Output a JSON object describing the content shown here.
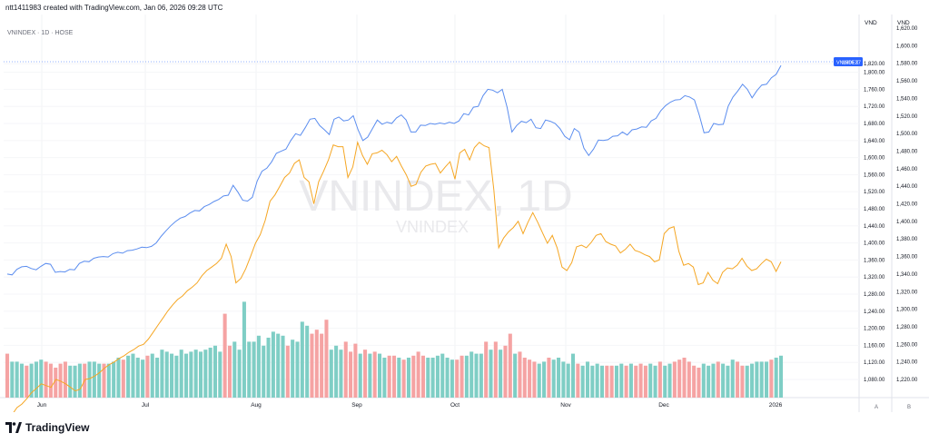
{
  "header_text": "ntt1411983 created with TradingView.com, Jan 06, 2026 09:28 UTC",
  "symbol_label": "VNINDEX · 1D · HOSE",
  "watermark_big": "VNINDEX, 1D",
  "watermark_small": "VNINDEX",
  "footer_brand": "TradingView",
  "colors": {
    "main_line": "#5b8def",
    "compare_line": "#f5a623",
    "vol_up": "#7fcec5",
    "vol_down": "#f5a3a3",
    "price_tag": "#2962ff"
  },
  "chart_data": {
    "type": "line",
    "x_labels": [
      "Jun",
      "Jul",
      "Aug",
      "Sep",
      "Oct",
      "Nov",
      "Dec",
      "2026"
    ],
    "right_axis_1": {
      "unit": "VND",
      "ticks": [
        1820,
        1800,
        1760,
        1720,
        1680,
        1640,
        1600,
        1560,
        1520,
        1480,
        1440,
        1400,
        1360,
        1320,
        1280,
        1240,
        1200,
        1160,
        1120,
        1080
      ],
      "tick_labels": [
        "1,820.00",
        "1,800.00",
        "1,760.00",
        "1,720.00",
        "1,680.00",
        "1,640.00",
        "1,600.00",
        "1,560.00",
        "1,520.00",
        "1,480.00",
        "1,440.00",
        "1,400.00",
        "1,360.00",
        "1,320.00",
        "1,280.00",
        "1,240.00",
        "1,200.00",
        "1,160.00",
        "1,120.00",
        "1,080.00"
      ]
    },
    "right_axis_2": {
      "unit": "VND",
      "ticks": [
        1620,
        1600,
        1580,
        1560,
        1540,
        1520,
        1500,
        1480,
        1460,
        1440,
        1420,
        1400,
        1380,
        1360,
        1340,
        1320,
        1300,
        1280,
        1260,
        1240,
        1220
      ],
      "tick_labels": [
        "1,620.00",
        "1,600.00",
        "1,580.00",
        "1,560.00",
        "1,540.00",
        "1,520.00",
        "1,500.00",
        "1,480.00",
        "1,460.00",
        "1,440.00",
        "1,420.00",
        "1,400.00",
        "1,380.00",
        "1,360.00",
        "1,340.00",
        "1,320.00",
        "1,300.00",
        "1,280.00",
        "1,260.00",
        "1,240.00",
        "1,220.00"
      ]
    },
    "price_tag": {
      "symbol": "VNINDEX",
      "value": "1,816.27"
    },
    "axis_buttons": [
      "A",
      "B"
    ],
    "series": [
      {
        "name": "VNINDEX",
        "axis": 1,
        "values": [
          1327,
          1325,
          1338,
          1344,
          1345,
          1340,
          1337,
          1345,
          1352,
          1350,
          1331,
          1333,
          1332,
          1338,
          1337,
          1352,
          1357,
          1356,
          1364,
          1367,
          1368,
          1367,
          1375,
          1378,
          1376,
          1382,
          1383,
          1386,
          1390,
          1389,
          1392,
          1400,
          1415,
          1428,
          1440,
          1450,
          1458,
          1462,
          1470,
          1476,
          1475,
          1485,
          1490,
          1497,
          1502,
          1510,
          1512,
          1535,
          1519,
          1500,
          1498,
          1507,
          1545,
          1568,
          1575,
          1590,
          1610,
          1615,
          1620,
          1640,
          1656,
          1652,
          1670,
          1690,
          1692,
          1675,
          1665,
          1654,
          1690,
          1695,
          1686,
          1688,
          1698,
          1665,
          1640,
          1648,
          1668,
          1688,
          1678,
          1683,
          1680,
          1693,
          1700,
          1688,
          1660,
          1660,
          1676,
          1675,
          1680,
          1678,
          1681,
          1679,
          1683,
          1680,
          1686,
          1703,
          1700,
          1718,
          1720,
          1745,
          1760,
          1758,
          1752,
          1760,
          1718,
          1660,
          1675,
          1685,
          1682,
          1690,
          1670,
          1668,
          1688,
          1685,
          1680,
          1668,
          1650,
          1642,
          1668,
          1660,
          1622,
          1605,
          1620,
          1641,
          1640,
          1642,
          1650,
          1651,
          1660,
          1653,
          1665,
          1667,
          1672,
          1671,
          1686,
          1692,
          1710,
          1722,
          1730,
          1735,
          1736,
          1745,
          1742,
          1735,
          1700,
          1658,
          1660,
          1680,
          1677,
          1678,
          1720,
          1742,
          1756,
          1772,
          1760,
          1740,
          1757,
          1770,
          1772,
          1787,
          1795,
          1816
        ]
      },
      {
        "name": "Compare",
        "axis": 2,
        "values": [
          1175,
          1180,
          1188,
          1192,
          1198,
          1205,
          1210,
          1215,
          1213,
          1211,
          1220,
          1218,
          1215,
          1211,
          1207,
          1209,
          1220,
          1221,
          1224,
          1228,
          1233,
          1237,
          1240,
          1244,
          1247,
          1251,
          1254,
          1258,
          1260,
          1266,
          1274,
          1282,
          1290,
          1298,
          1305,
          1311,
          1315,
          1321,
          1325,
          1330,
          1338,
          1344,
          1348,
          1352,
          1358,
          1374,
          1360,
          1330,
          1335,
          1346,
          1360,
          1375,
          1385,
          1401,
          1423,
          1430,
          1440,
          1450,
          1455,
          1466,
          1470,
          1450,
          1445,
          1420,
          1445,
          1457,
          1470,
          1487,
          1485,
          1485,
          1450,
          1462,
          1490,
          1475,
          1465,
          1477,
          1478,
          1481,
          1476,
          1468,
          1474,
          1463,
          1453,
          1440,
          1442,
          1456,
          1463,
          1465,
          1466,
          1455,
          1462,
          1468,
          1448,
          1478,
          1482,
          1470,
          1484,
          1490,
          1486,
          1484,
          1436,
          1370,
          1381,
          1388,
          1393,
          1400,
          1386,
          1399,
          1410,
          1399,
          1387,
          1375,
          1384,
          1370,
          1348,
          1344,
          1353,
          1371,
          1373,
          1370,
          1376,
          1384,
          1386,
          1377,
          1374,
          1372,
          1364,
          1368,
          1374,
          1367,
          1365,
          1362,
          1360,
          1354,
          1356,
          1386,
          1392,
          1394,
          1366,
          1350,
          1352,
          1348,
          1328,
          1330,
          1342,
          1333,
          1329,
          1342,
          1347,
          1346,
          1350,
          1358,
          1349,
          1344,
          1346,
          1352,
          1357,
          1354,
          1343,
          1354
        ]
      }
    ],
    "volume": {
      "values": [
        22,
        18,
        18,
        17,
        16,
        17,
        18,
        19,
        18,
        17,
        15,
        17,
        18,
        16,
        16,
        17,
        17,
        18,
        18,
        17,
        17,
        17,
        18,
        20,
        19,
        21,
        22,
        20,
        19,
        21,
        22,
        20,
        24,
        23,
        22,
        21,
        24,
        22,
        23,
        24,
        23,
        24,
        25,
        26,
        23,
        42,
        26,
        28,
        24,
        48,
        28,
        28,
        31,
        26,
        30,
        33,
        32,
        31,
        26,
        29,
        28,
        38,
        36,
        32,
        34,
        32,
        39,
        24,
        26,
        24,
        28,
        23,
        27,
        22,
        24,
        22,
        23,
        22,
        20,
        21,
        21,
        20,
        19,
        20,
        21,
        23,
        21,
        20,
        20,
        21,
        22,
        20,
        19,
        19,
        21,
        21,
        23,
        22,
        22,
        28,
        24,
        28,
        24,
        26,
        32,
        22,
        23,
        20,
        19,
        18,
        17,
        18,
        20,
        19,
        20,
        18,
        17,
        22,
        17,
        16,
        18,
        16,
        17,
        16,
        16,
        16,
        16,
        17,
        16,
        17,
        16,
        17,
        16,
        17,
        16,
        18,
        16,
        17,
        18,
        19,
        20,
        18,
        16,
        15,
        17,
        16,
        17,
        18,
        17,
        16,
        19,
        18,
        16,
        16,
        17,
        18,
        18,
        18,
        19,
        20,
        21
      ],
      "down": [
        1,
        0,
        0,
        0,
        1,
        0,
        0,
        0,
        1,
        1,
        1,
        1,
        1,
        0,
        0,
        0,
        1,
        0,
        0,
        0,
        1,
        0,
        0,
        0,
        1,
        0,
        0,
        0,
        0,
        1,
        0,
        0,
        0,
        0,
        0,
        0,
        0,
        0,
        0,
        0,
        0,
        0,
        0,
        0,
        0,
        1,
        1,
        0,
        0,
        0,
        0,
        0,
        0,
        0,
        0,
        0,
        0,
        0,
        1,
        0,
        0,
        0,
        0,
        1,
        1,
        1,
        1,
        0,
        0,
        0,
        1,
        1,
        1,
        0,
        1,
        0,
        1,
        0,
        0,
        1,
        1,
        0,
        1,
        0,
        1,
        1,
        1,
        0,
        0,
        0,
        0,
        0,
        0,
        1,
        1,
        0,
        0,
        0,
        0,
        1,
        0,
        1,
        0,
        1,
        1,
        0,
        1,
        1,
        1,
        1,
        0,
        0,
        1,
        0,
        0,
        0,
        0,
        0,
        1,
        0,
        0,
        0,
        0,
        0,
        1,
        1,
        0,
        0,
        1,
        0,
        1,
        1,
        1,
        0,
        0,
        1,
        0,
        0,
        1,
        1,
        1,
        1,
        1,
        1,
        0,
        0,
        0,
        1,
        0,
        0,
        0,
        1,
        1,
        0,
        0,
        0,
        0,
        0,
        1,
        0,
        0,
        0
      ]
    },
    "grid": true
  }
}
